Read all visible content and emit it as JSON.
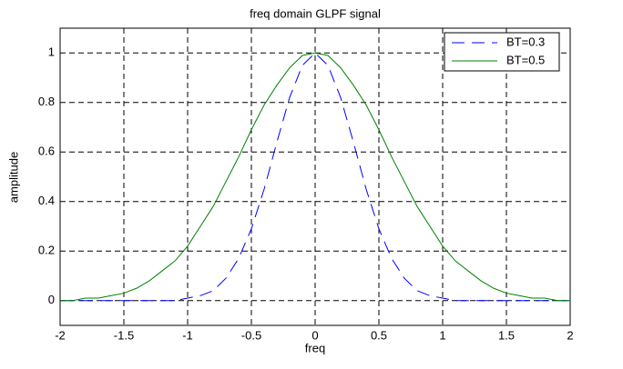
{
  "chart_data": {
    "type": "line",
    "title": "freq domain GLPF signal",
    "x_label": "freq",
    "y_label": "amplitude",
    "x": [
      -2,
      -1.9,
      -1.8,
      -1.7,
      -1.6,
      -1.5,
      -1.4,
      -1.3,
      -1.2,
      -1.1,
      -1,
      -0.9,
      -0.8,
      -0.7,
      -0.6,
      -0.5,
      -0.4,
      -0.3,
      -0.2,
      -0.1,
      0,
      0.1,
      0.2,
      0.3,
      0.4,
      0.5,
      0.6,
      0.7,
      0.8,
      0.9,
      1,
      1.1,
      1.2,
      1.3,
      1.4,
      1.5,
      1.6,
      1.7,
      1.8,
      1.9,
      2
    ],
    "series": [
      {
        "name": "BT=0.3",
        "color": "#0000ff",
        "dash": true,
        "values": [
          0,
          0,
          0,
          0,
          0,
          0,
          0,
          0,
          0,
          0,
          0.01,
          0.02,
          0.04,
          0.09,
          0.17,
          0.29,
          0.45,
          0.64,
          0.82,
          0.95,
          1,
          0.95,
          0.82,
          0.64,
          0.45,
          0.29,
          0.17,
          0.09,
          0.04,
          0.02,
          0.01,
          0,
          0,
          0,
          0,
          0,
          0,
          0,
          0,
          0,
          0
        ]
      },
      {
        "name": "BT=0.5",
        "color": "#008000",
        "dash": false,
        "values": [
          0,
          0,
          0.01,
          0.01,
          0.02,
          0.03,
          0.05,
          0.08,
          0.12,
          0.16,
          0.22,
          0.3,
          0.38,
          0.48,
          0.58,
          0.69,
          0.79,
          0.87,
          0.94,
          0.99,
          1,
          0.99,
          0.94,
          0.87,
          0.79,
          0.69,
          0.58,
          0.48,
          0.38,
          0.3,
          0.22,
          0.16,
          0.12,
          0.08,
          0.05,
          0.03,
          0.02,
          0.01,
          0.01,
          0,
          0
        ]
      }
    ],
    "xlim": [
      -2,
      2
    ],
    "xticks": [
      -2,
      -1.5,
      -1,
      -0.5,
      0,
      0.5,
      1,
      1.5,
      2
    ],
    "ylim": [
      -0.1,
      1.1
    ],
    "yticks": [
      0,
      0.2,
      0.4,
      0.6,
      0.8,
      1
    ],
    "grid": true,
    "legend": "northeast"
  }
}
